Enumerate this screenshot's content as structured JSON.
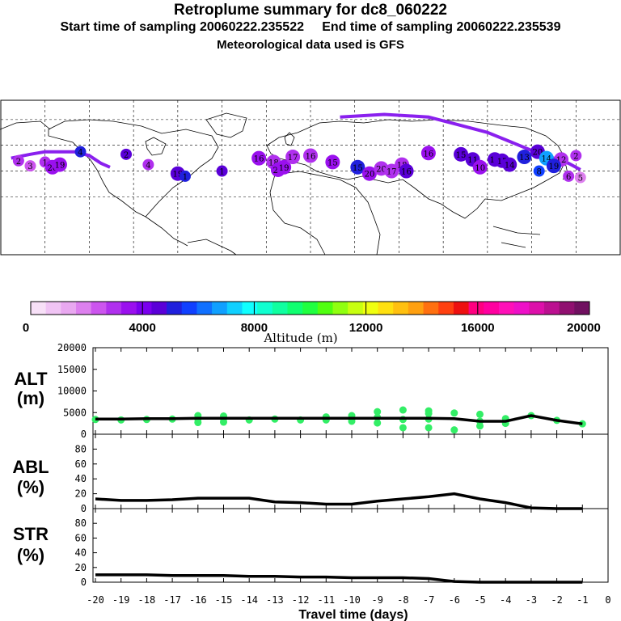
{
  "titles": {
    "main": "Retroplume summary for dc8_060222",
    "sampling": "Start time of sampling 20060222.235522     End time of sampling 20060222.235539",
    "met": "Meteorological data used is GFS"
  },
  "colorbar": {
    "label": "Altitude (m)",
    "ticks": [
      "0",
      "4000",
      "8000",
      "12000",
      "16000",
      "20000"
    ],
    "colors": [
      "#f7e0f7",
      "#f0c4f4",
      "#e9a8f0",
      "#dd80ee",
      "#cc55ee",
      "#b030ee",
      "#9a10ee",
      "#7a00ee",
      "#5a00d8",
      "#2020dd",
      "#1040ff",
      "#1070ff",
      "#10a0ff",
      "#10d0ff",
      "#10ffff",
      "#10ffd0",
      "#10ffa0",
      "#10ff70",
      "#20ff40",
      "#50ff10",
      "#90ff10",
      "#c8ff10",
      "#f0ff10",
      "#ffe010",
      "#ffc010",
      "#ffa010",
      "#ff7010",
      "#ff4010",
      "#ee1010",
      "#ff0080",
      "#ff00a0",
      "#ff10b8",
      "#ee10c8",
      "#dd10aa",
      "#bb1090",
      "#901070",
      "#701060"
    ]
  },
  "map": {
    "markers": [
      {
        "lon": -168,
        "lat": 48,
        "label": "2",
        "color": "#b030ee"
      },
      {
        "lon": -160,
        "lat": 44,
        "label": "3",
        "color": "#cc55ee"
      },
      {
        "lon": -150,
        "lat": 47,
        "label": "1",
        "color": "#b030ee"
      },
      {
        "lon": -145,
        "lat": 43,
        "label": "20",
        "color": "#9a10ee"
      },
      {
        "lon": -140,
        "lat": 45,
        "label": "19",
        "color": "#9a10ee"
      },
      {
        "lon": -126,
        "lat": 55,
        "label": "4",
        "color": "#2020dd"
      },
      {
        "lon": -95,
        "lat": 53,
        "label": "2",
        "color": "#5a00d8"
      },
      {
        "lon": -80,
        "lat": 45,
        "label": "4",
        "color": "#b030ee"
      },
      {
        "lon": -60,
        "lat": 38,
        "label": "19",
        "color": "#5a00d8"
      },
      {
        "lon": -55,
        "lat": 36,
        "label": "1",
        "color": "#2020dd"
      },
      {
        "lon": -30,
        "lat": 40,
        "label": "1",
        "color": "#5a00d8"
      },
      {
        "lon": -5,
        "lat": 50,
        "label": "16",
        "color": "#9a10ee"
      },
      {
        "lon": 5,
        "lat": 47,
        "label": "18",
        "color": "#b030ee"
      },
      {
        "lon": 8,
        "lat": 41,
        "label": "20",
        "color": "#9a10ee"
      },
      {
        "lon": 12,
        "lat": 43,
        "label": "19",
        "color": "#9a10ee"
      },
      {
        "lon": 18,
        "lat": 51,
        "label": "17",
        "color": "#b030ee"
      },
      {
        "lon": 30,
        "lat": 52,
        "label": "16",
        "color": "#b030ee"
      },
      {
        "lon": 45,
        "lat": 47,
        "label": "15",
        "color": "#9a10ee"
      },
      {
        "lon": 62,
        "lat": 43,
        "label": "15",
        "color": "#2020dd"
      },
      {
        "lon": 70,
        "lat": 38,
        "label": "20",
        "color": "#9a10ee"
      },
      {
        "lon": 78,
        "lat": 42,
        "label": "20",
        "color": "#b030ee"
      },
      {
        "lon": 85,
        "lat": 40,
        "label": "17",
        "color": "#b030ee"
      },
      {
        "lon": 92,
        "lat": 45,
        "label": "18",
        "color": "#b030ee"
      },
      {
        "lon": 95,
        "lat": 40,
        "label": "16",
        "color": "#5a00d8"
      },
      {
        "lon": 110,
        "lat": 54,
        "label": "16",
        "color": "#9a10ee"
      },
      {
        "lon": 132,
        "lat": 53,
        "label": "15",
        "color": "#5a00d8"
      },
      {
        "lon": 140,
        "lat": 49,
        "label": "11",
        "color": "#5a00d8"
      },
      {
        "lon": 145,
        "lat": 43,
        "label": "10",
        "color": "#9a10ee"
      },
      {
        "lon": 155,
        "lat": 49,
        "label": "11",
        "color": "#5a00d8"
      },
      {
        "lon": 160,
        "lat": 48,
        "label": "17",
        "color": "#5a00d8"
      },
      {
        "lon": 165,
        "lat": 45,
        "label": "14",
        "color": "#5a00d8"
      },
      {
        "lon": 175,
        "lat": 51,
        "label": "13",
        "color": "#2020dd"
      },
      {
        "lon": 184,
        "lat": 55,
        "label": "20",
        "color": "#5a00d8"
      },
      {
        "lon": 190,
        "lat": 50,
        "label": "14",
        "color": "#10a0ff"
      },
      {
        "lon": 185,
        "lat": 40,
        "label": "8",
        "color": "#1040ff"
      },
      {
        "lon": 200,
        "lat": 49,
        "label": "12",
        "color": "#b030ee"
      },
      {
        "lon": 195,
        "lat": 44,
        "label": "19",
        "color": "#2020dd"
      },
      {
        "lon": 205,
        "lat": 36,
        "label": "6",
        "color": "#b030ee"
      },
      {
        "lon": 213,
        "lat": 35,
        "label": "5",
        "color": "#dd80ee"
      },
      {
        "lon": 210,
        "lat": 52,
        "label": "2",
        "color": "#b030ee"
      }
    ],
    "trajectories": [
      {
        "color": "#8a20ee",
        "points": [
          [
            -173,
            50
          ],
          [
            -160,
            53
          ],
          [
            -150,
            55
          ],
          [
            -130,
            55
          ],
          [
            -120,
            52
          ],
          [
            -112,
            46
          ],
          [
            -106,
            43
          ]
        ]
      },
      {
        "color": "#8a20ee",
        "points": [
          [
            50,
            82
          ],
          [
            80,
            84
          ],
          [
            110,
            82
          ],
          [
            130,
            76
          ],
          [
            150,
            70
          ],
          [
            165,
            63
          ],
          [
            180,
            56
          ],
          [
            195,
            50
          ],
          [
            205,
            46
          ],
          [
            213,
            41
          ]
        ]
      }
    ]
  },
  "chart_data": [
    {
      "type": "scatter",
      "title": "ALT (m)",
      "ylabel": "ALT (m)",
      "ylim": [
        0,
        20000
      ],
      "yticks": [
        0,
        5000,
        10000,
        15000,
        20000
      ],
      "x": [
        -20,
        -19,
        -18,
        -17,
        -16,
        -15,
        -14,
        -13,
        -12,
        -11,
        -10,
        -9,
        -8,
        -7,
        -6,
        -5,
        -4,
        -3,
        -2,
        -1
      ],
      "series": [
        {
          "name": "median altitude",
          "values": [
            3500,
            3500,
            3600,
            3600,
            3700,
            3700,
            3700,
            3700,
            3700,
            3700,
            3700,
            3700,
            3700,
            3700,
            3600,
            3000,
            3000,
            4300,
            3200,
            2400
          ]
        }
      ],
      "scatter_points": [
        [
          -20,
          3400
        ],
        [
          -19,
          3300
        ],
        [
          -18,
          3400
        ],
        [
          -17,
          3500
        ],
        [
          -16,
          3500
        ],
        [
          -16,
          2700
        ],
        [
          -16,
          4300
        ],
        [
          -15,
          3600
        ],
        [
          -15,
          2800
        ],
        [
          -15,
          4200
        ],
        [
          -14,
          3300
        ],
        [
          -13,
          3500
        ],
        [
          -12,
          3300
        ],
        [
          -11,
          3300
        ],
        [
          -11,
          4000
        ],
        [
          -10,
          3500
        ],
        [
          -10,
          4300
        ],
        [
          -10,
          3000
        ],
        [
          -9,
          3900
        ],
        [
          -9,
          2600
        ],
        [
          -9,
          5200
        ],
        [
          -8,
          3400
        ],
        [
          -8,
          5600
        ],
        [
          -8,
          1500
        ],
        [
          -7,
          3500
        ],
        [
          -7,
          5400
        ],
        [
          -7,
          1500
        ],
        [
          -7,
          4800
        ],
        [
          -6,
          4900
        ],
        [
          -6,
          1000
        ],
        [
          -5,
          3000
        ],
        [
          -5,
          4600
        ],
        [
          -5,
          1900
        ],
        [
          -4,
          2500
        ],
        [
          -4,
          3600
        ],
        [
          -3,
          4300
        ],
        [
          -2,
          3200
        ],
        [
          -1,
          2400
        ]
      ]
    },
    {
      "type": "line",
      "title": "ABL (%)",
      "ylabel": "ABL (%)",
      "ylim": [
        0,
        100
      ],
      "yticks": [
        0,
        20,
        40,
        60,
        80
      ],
      "x": [
        -20,
        -19,
        -18,
        -17,
        -16,
        -15,
        -14,
        -13,
        -12,
        -11,
        -10,
        -9,
        -8,
        -7,
        -6,
        -5,
        -4,
        -3,
        -2,
        -1
      ],
      "series": [
        {
          "name": "ABL",
          "values": [
            13,
            11,
            11,
            12,
            14,
            14,
            14,
            9,
            8,
            6,
            6,
            10,
            13,
            16,
            20,
            13,
            8,
            1,
            0,
            0
          ]
        }
      ]
    },
    {
      "type": "line",
      "title": "STR (%)",
      "ylabel": "STR (%)",
      "ylim": [
        0,
        100
      ],
      "yticks": [
        0,
        20,
        40,
        60,
        80
      ],
      "xlabel": "Travel time (days)",
      "xticks": [
        "-20",
        "-19",
        "-18",
        "-17",
        "-16",
        "-15",
        "-14",
        "-13",
        "-12",
        "-11",
        "-10",
        "-9",
        "-8",
        "-7",
        "-6",
        "-5",
        "-4",
        "-3",
        "-2",
        "-1",
        "0"
      ],
      "x": [
        -20,
        -19,
        -18,
        -17,
        -16,
        -15,
        -14,
        -13,
        -12,
        -11,
        -10,
        -9,
        -8,
        -7,
        -6,
        -5,
        -4,
        -3,
        -2,
        -1
      ],
      "series": [
        {
          "name": "STR",
          "values": [
            10,
            10,
            10,
            9,
            9,
            9,
            8,
            8,
            7,
            7,
            6,
            6,
            6,
            5,
            1,
            0,
            0,
            0,
            0,
            0
          ]
        }
      ]
    }
  ]
}
